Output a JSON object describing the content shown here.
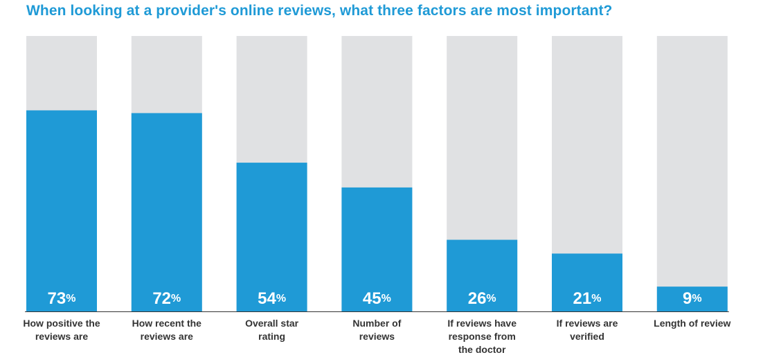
{
  "chart_data": {
    "type": "bar",
    "title": "When looking at a provider's online reviews, what three factors are most important?",
    "categories": [
      [
        "How positive the",
        "reviews are"
      ],
      [
        "How recent the",
        "reviews are"
      ],
      [
        "Overall star",
        "rating"
      ],
      [
        "Number of",
        "reviews"
      ],
      [
        "If reviews have",
        "response from",
        "the doctor"
      ],
      [
        "If reviews are",
        "verified"
      ],
      [
        "Length of review"
      ]
    ],
    "values": [
      73,
      72,
      54,
      45,
      26,
      21,
      9
    ],
    "value_labels": [
      "73",
      "72",
      "54",
      "45",
      "26",
      "21",
      "9"
    ],
    "value_suffix": "%",
    "ylim": [
      0,
      100
    ],
    "grid": false,
    "legend": "none",
    "colors": {
      "fill": "#1f9ad6",
      "background": "#e0e1e3",
      "title": "#1f9ad6",
      "text": "#333333",
      "value_text": "#ffffff"
    }
  }
}
